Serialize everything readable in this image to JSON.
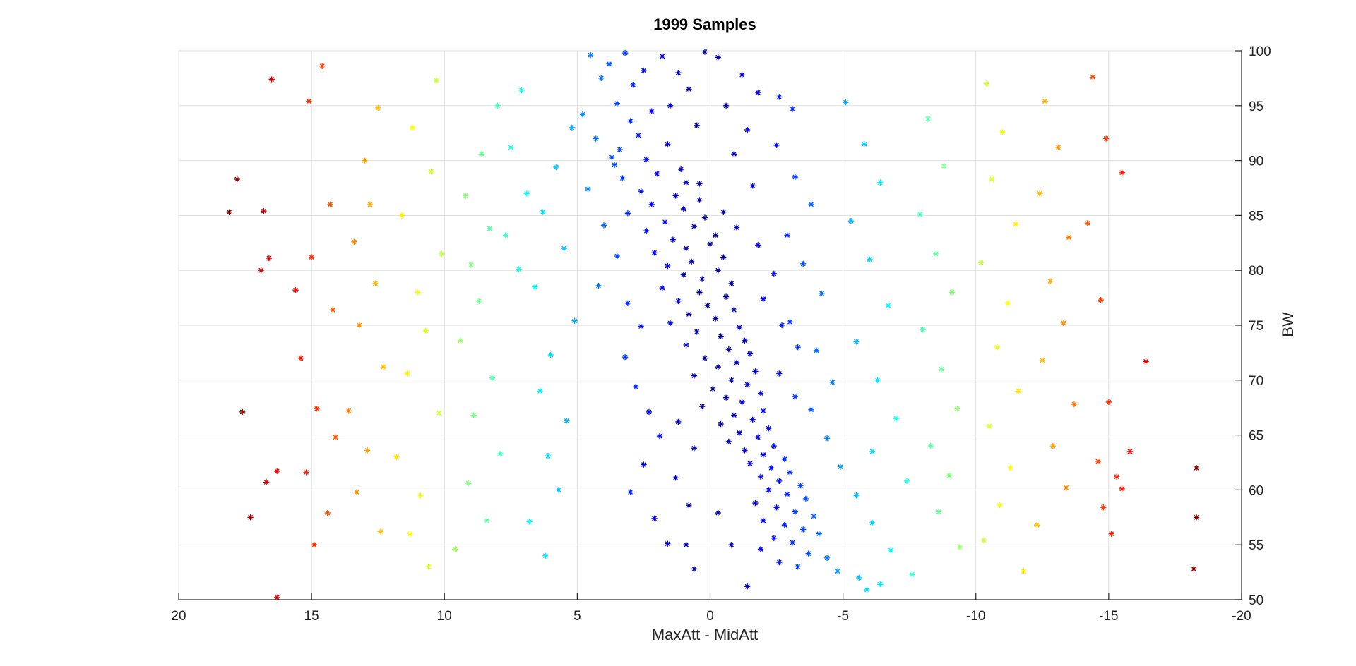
{
  "chart_data": {
    "type": "scatter",
    "title": "1999 Samples",
    "xlabel": "MaxAtt - MidAtt",
    "ylabel": "BW",
    "xlim": [
      20,
      -20
    ],
    "ylim": [
      50,
      100
    ],
    "x_reversed": true,
    "y_axis_location": "right",
    "grid": true,
    "marker": "asterisk",
    "colormap": "jet",
    "color_encoding": "absolute value of x",
    "x_ticks": [
      "20",
      "15",
      "10",
      "5",
      "0",
      "-5",
      "-10",
      "-15",
      "-20"
    ],
    "y_ticks": [
      "50",
      "55",
      "60",
      "65",
      "70",
      "75",
      "80",
      "85",
      "90",
      "95",
      "100"
    ],
    "sample_count": 1999,
    "points": [
      [
        3.2,
        99.8
      ],
      [
        4.5,
        99.6
      ],
      [
        1.8,
        99.5
      ],
      [
        0.2,
        99.9
      ],
      [
        -0.3,
        99.4
      ],
      [
        3.8,
        98.8
      ],
      [
        2.5,
        98.2
      ],
      [
        1.2,
        98.0
      ],
      [
        -1.2,
        97.8
      ],
      [
        4.1,
        97.5
      ],
      [
        2.9,
        96.9
      ],
      [
        0.8,
        96.5
      ],
      [
        -1.8,
        96.2
      ],
      [
        -2.6,
        95.8
      ],
      [
        3.5,
        95.2
      ],
      [
        1.5,
        95.0
      ],
      [
        -0.6,
        95.0
      ],
      [
        2.2,
        94.5
      ],
      [
        -3.1,
        94.7
      ],
      [
        4.8,
        94.2
      ],
      [
        3.0,
        93.6
      ],
      [
        0.5,
        93.2
      ],
      [
        -1.4,
        92.8
      ],
      [
        2.7,
        92.3
      ],
      [
        1.6,
        91.5
      ],
      [
        3.4,
        91.0
      ],
      [
        -0.9,
        90.6
      ],
      [
        2.4,
        90.1
      ],
      [
        3.6,
        89.6
      ],
      [
        1.1,
        89.2
      ],
      [
        2.0,
        88.8
      ],
      [
        3.3,
        88.4
      ],
      [
        0.9,
        88.0
      ],
      [
        -1.6,
        87.7
      ],
      [
        2.6,
        87.2
      ],
      [
        1.3,
        86.8
      ],
      [
        0.4,
        86.4
      ],
      [
        2.2,
        86.0
      ],
      [
        1.0,
        85.6
      ],
      [
        3.1,
        85.2
      ],
      [
        0.2,
        84.8
      ],
      [
        1.7,
        84.4
      ],
      [
        0.6,
        84.0
      ],
      [
        2.4,
        83.6
      ],
      [
        -0.2,
        83.2
      ],
      [
        1.4,
        82.8
      ],
      [
        0.0,
        82.4
      ],
      [
        0.9,
        82.0
      ],
      [
        2.1,
        81.6
      ],
      [
        -0.5,
        81.2
      ],
      [
        0.7,
        80.8
      ],
      [
        1.6,
        80.4
      ],
      [
        -0.3,
        80.0
      ],
      [
        1.0,
        79.6
      ],
      [
        0.3,
        79.2
      ],
      [
        -0.8,
        78.8
      ],
      [
        1.8,
        78.4
      ],
      [
        0.4,
        78.0
      ],
      [
        -0.6,
        77.6
      ],
      [
        1.2,
        77.2
      ],
      [
        0.1,
        76.8
      ],
      [
        -0.9,
        76.4
      ],
      [
        0.8,
        76.0
      ],
      [
        -0.2,
        75.6
      ],
      [
        1.5,
        75.2
      ],
      [
        -1.1,
        74.8
      ],
      [
        0.5,
        74.4
      ],
      [
        -0.4,
        74.0
      ],
      [
        -1.3,
        73.6
      ],
      [
        0.9,
        73.2
      ],
      [
        -0.7,
        72.8
      ],
      [
        -1.5,
        72.4
      ],
      [
        0.2,
        72.0
      ],
      [
        -1.0,
        71.6
      ],
      [
        -0.3,
        71.2
      ],
      [
        -1.7,
        70.8
      ],
      [
        0.6,
        70.4
      ],
      [
        -0.8,
        70.0
      ],
      [
        -1.4,
        69.6
      ],
      [
        -0.1,
        69.2
      ],
      [
        -1.9,
        68.8
      ],
      [
        -0.6,
        68.4
      ],
      [
        -1.2,
        68.0
      ],
      [
        0.3,
        67.6
      ],
      [
        -2.0,
        67.2
      ],
      [
        -0.9,
        66.8
      ],
      [
        -1.6,
        66.4
      ],
      [
        -0.4,
        66.0
      ],
      [
        -2.2,
        65.6
      ],
      [
        -1.1,
        65.2
      ],
      [
        -1.8,
        64.8
      ],
      [
        -0.7,
        64.4
      ],
      [
        -2.4,
        64.0
      ],
      [
        -1.3,
        63.6
      ],
      [
        -2.0,
        63.2
      ],
      [
        -2.8,
        62.8
      ],
      [
        -1.5,
        62.4
      ],
      [
        -2.3,
        62.0
      ],
      [
        -3.0,
        61.6
      ],
      [
        -1.9,
        61.2
      ],
      [
        -2.6,
        60.8
      ],
      [
        -3.4,
        60.4
      ],
      [
        -2.2,
        60.0
      ],
      [
        -2.9,
        59.6
      ],
      [
        -3.6,
        59.2
      ],
      [
        -1.7,
        58.8
      ],
      [
        -2.5,
        58.4
      ],
      [
        -3.2,
        58.0
      ],
      [
        -3.9,
        57.6
      ],
      [
        -2.0,
        57.2
      ],
      [
        -2.8,
        56.8
      ],
      [
        -3.5,
        56.4
      ],
      [
        -4.1,
        56.0
      ],
      [
        -2.4,
        55.6
      ],
      [
        -3.1,
        55.2
      ],
      [
        -0.8,
        55.0
      ],
      [
        0.9,
        55.0
      ],
      [
        -1.9,
        54.6
      ],
      [
        -3.7,
        54.2
      ],
      [
        -4.4,
        53.8
      ],
      [
        -2.6,
        53.4
      ],
      [
        -3.3,
        53.0
      ],
      [
        -4.8,
        52.6
      ],
      [
        -5.6,
        52.0
      ],
      [
        -6.4,
        51.4
      ],
      [
        -5.9,
        50.9
      ],
      [
        4.3,
        92.0
      ],
      [
        3.7,
        90.3
      ],
      [
        4.6,
        87.4
      ],
      [
        4.0,
        84.1
      ],
      [
        3.5,
        81.3
      ],
      [
        4.2,
        78.6
      ],
      [
        3.1,
        77.0
      ],
      [
        2.6,
        74.9
      ],
      [
        3.2,
        72.1
      ],
      [
        2.8,
        69.4
      ],
      [
        2.3,
        67.1
      ],
      [
        1.9,
        64.9
      ],
      [
        2.5,
        62.3
      ],
      [
        3.0,
        59.8
      ],
      [
        2.1,
        57.4
      ],
      [
        1.6,
        55.1
      ],
      [
        0.6,
        52.8
      ],
      [
        -1.4,
        51.2
      ],
      [
        -2.5,
        91.4
      ],
      [
        -3.2,
        88.5
      ],
      [
        -3.8,
        86.0
      ],
      [
        -2.9,
        83.2
      ],
      [
        -3.5,
        80.6
      ],
      [
        -4.2,
        77.9
      ],
      [
        -3.0,
        75.3
      ],
      [
        -4.0,
        72.7
      ],
      [
        -4.6,
        69.8
      ],
      [
        -3.8,
        67.3
      ],
      [
        -4.4,
        64.7
      ],
      [
        -4.9,
        62.1
      ],
      [
        -5.5,
        59.5
      ],
      [
        -6.1,
        57.0
      ],
      [
        -6.8,
        54.5
      ],
      [
        0.4,
        87.9
      ],
      [
        -0.5,
        85.3
      ],
      [
        -1.0,
        83.9
      ],
      [
        -1.8,
        82.3
      ],
      [
        -2.4,
        79.7
      ],
      [
        -2.0,
        77.4
      ],
      [
        -2.7,
        75.0
      ],
      [
        -3.3,
        73.0
      ],
      [
        -2.6,
        70.6
      ],
      [
        -3.2,
        68.5
      ],
      [
        1.2,
        66.2
      ],
      [
        0.6,
        63.8
      ],
      [
        1.3,
        61.1
      ],
      [
        0.8,
        58.6
      ],
      [
        -0.3,
        57.9
      ],
      [
        5.2,
        93.0
      ],
      [
        5.8,
        89.4
      ],
      [
        6.3,
        85.3
      ],
      [
        5.5,
        82.0
      ],
      [
        6.6,
        78.5
      ],
      [
        5.1,
        75.4
      ],
      [
        6.0,
        72.3
      ],
      [
        6.4,
        69.0
      ],
      [
        5.4,
        66.3
      ],
      [
        6.1,
        63.1
      ],
      [
        5.7,
        60.0
      ],
      [
        6.8,
        57.1
      ],
      [
        6.2,
        54.0
      ],
      [
        7.1,
        96.4
      ],
      [
        7.5,
        91.2
      ],
      [
        6.9,
        87.0
      ],
      [
        7.7,
        83.2
      ],
      [
        7.2,
        80.1
      ],
      [
        -5.1,
        95.3
      ],
      [
        -5.8,
        91.5
      ],
      [
        -6.4,
        88.0
      ],
      [
        -5.3,
        84.5
      ],
      [
        -6.0,
        81.0
      ],
      [
        -6.7,
        76.8
      ],
      [
        -5.5,
        73.5
      ],
      [
        -6.3,
        70.0
      ],
      [
        -7.0,
        66.5
      ],
      [
        -6.1,
        63.5
      ],
      [
        -7.4,
        60.8
      ],
      [
        8.0,
        95.0
      ],
      [
        8.6,
        90.6
      ],
      [
        9.2,
        86.8
      ],
      [
        8.3,
        83.8
      ],
      [
        9.0,
        80.5
      ],
      [
        8.7,
        77.2
      ],
      [
        9.4,
        73.6
      ],
      [
        8.2,
        70.2
      ],
      [
        8.9,
        66.8
      ],
      [
        7.9,
        63.3
      ],
      [
        9.1,
        60.6
      ],
      [
        8.4,
        57.2
      ],
      [
        9.6,
        54.6
      ],
      [
        -8.2,
        93.8
      ],
      [
        -8.8,
        89.5
      ],
      [
        -7.9,
        85.1
      ],
      [
        -8.5,
        81.5
      ],
      [
        -9.1,
        78.0
      ],
      [
        -8.0,
        74.6
      ],
      [
        -8.7,
        71.0
      ],
      [
        -9.3,
        67.4
      ],
      [
        -8.3,
        64.0
      ],
      [
        -9.0,
        61.3
      ],
      [
        -8.6,
        58.0
      ],
      [
        -9.4,
        54.8
      ],
      [
        -7.6,
        52.3
      ],
      [
        10.3,
        97.3
      ],
      [
        11.2,
        93.0
      ],
      [
        10.5,
        89.0
      ],
      [
        11.6,
        85.0
      ],
      [
        10.1,
        81.5
      ],
      [
        11.0,
        78.0
      ],
      [
        10.7,
        74.5
      ],
      [
        11.4,
        70.6
      ],
      [
        10.2,
        67.0
      ],
      [
        11.8,
        63.0
      ],
      [
        10.9,
        59.5
      ],
      [
        11.3,
        56.0
      ],
      [
        10.6,
        53.0
      ],
      [
        -10.4,
        97.0
      ],
      [
        -11.0,
        92.6
      ],
      [
        -10.6,
        88.3
      ],
      [
        -11.5,
        84.2
      ],
      [
        -10.2,
        80.7
      ],
      [
        -11.2,
        77.0
      ],
      [
        -10.8,
        73.0
      ],
      [
        -11.6,
        69.0
      ],
      [
        -10.5,
        65.8
      ],
      [
        -11.3,
        62.0
      ],
      [
        -10.9,
        58.6
      ],
      [
        -10.3,
        55.4
      ],
      [
        -11.8,
        52.6
      ],
      [
        12.5,
        94.8
      ],
      [
        13.0,
        90.0
      ],
      [
        12.8,
        86.0
      ],
      [
        13.4,
        82.6
      ],
      [
        12.6,
        78.8
      ],
      [
        13.2,
        75.0
      ],
      [
        12.3,
        71.2
      ],
      [
        13.6,
        67.2
      ],
      [
        12.9,
        63.6
      ],
      [
        13.3,
        59.8
      ],
      [
        12.4,
        56.2
      ],
      [
        -12.6,
        95.4
      ],
      [
        -13.1,
        91.2
      ],
      [
        -12.4,
        87.0
      ],
      [
        -13.5,
        83.0
      ],
      [
        -12.8,
        79.0
      ],
      [
        -13.3,
        75.2
      ],
      [
        -12.5,
        71.8
      ],
      [
        -13.7,
        67.8
      ],
      [
        -12.9,
        64.0
      ],
      [
        -13.4,
        60.2
      ],
      [
        -12.3,
        56.8
      ],
      [
        14.6,
        98.6
      ],
      [
        15.1,
        95.4
      ],
      [
        14.3,
        86.0
      ],
      [
        15.0,
        81.2
      ],
      [
        14.2,
        76.4
      ],
      [
        15.4,
        72.0
      ],
      [
        14.8,
        67.4
      ],
      [
        14.1,
        64.8
      ],
      [
        15.2,
        61.6
      ],
      [
        14.4,
        57.9
      ],
      [
        14.9,
        55.0
      ],
      [
        -14.4,
        97.6
      ],
      [
        -14.9,
        92.0
      ],
      [
        -14.2,
        84.3
      ],
      [
        -14.7,
        77.3
      ],
      [
        -15.0,
        68.0
      ],
      [
        -14.6,
        62.6
      ],
      [
        -15.3,
        61.2
      ],
      [
        -14.8,
        58.4
      ],
      [
        -15.1,
        56.0
      ],
      [
        16.5,
        97.4
      ],
      [
        17.8,
        88.3
      ],
      [
        18.1,
        85.3
      ],
      [
        16.8,
        85.4
      ],
      [
        16.6,
        81.1
      ],
      [
        16.9,
        80.0
      ],
      [
        15.6,
        78.2
      ],
      [
        17.6,
        67.1
      ],
      [
        16.3,
        61.7
      ],
      [
        16.7,
        60.7
      ],
      [
        17.3,
        57.5
      ],
      [
        16.3,
        50.2
      ],
      [
        -16.4,
        71.7
      ],
      [
        -15.8,
        63.5
      ],
      [
        -15.5,
        60.1
      ],
      [
        -18.2,
        52.8
      ],
      [
        -18.3,
        57.5
      ],
      [
        -18.3,
        62.0
      ],
      [
        -15.5,
        88.9
      ]
    ]
  }
}
